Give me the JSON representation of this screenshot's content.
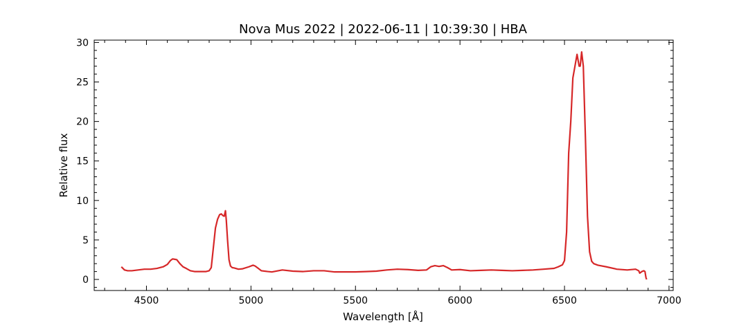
{
  "chart_data": {
    "type": "line",
    "title": "Nova Mus 2022 | 2022-06-11 | 10:39:30 | HBA",
    "xlabel": "Wavelength [Å]",
    "ylabel": "Relative flux",
    "xlim": [
      4250,
      7020
    ],
    "ylim": [
      -1.4,
      30.3
    ],
    "xticks": [
      4500,
      5000,
      5500,
      6000,
      6500,
      7000
    ],
    "yticks": [
      0,
      5,
      10,
      15,
      20,
      25,
      30
    ],
    "grid": false,
    "legend": "none",
    "color": "#d62728",
    "series": [
      {
        "x": [
          4380,
          4395,
          4410,
          4430,
          4460,
          4490,
          4520,
          4550,
          4580,
          4600,
          4615,
          4625,
          4635,
          4645,
          4660,
          4675,
          4690,
          4710,
          4730,
          4750,
          4770,
          4785,
          4800,
          4810,
          4820,
          4830,
          4840,
          4850,
          4858,
          4865,
          4872,
          4878,
          4882,
          4888,
          4895,
          4902,
          4910,
          4920,
          4940,
          4960,
          4990,
          5010,
          5020,
          5035,
          5050,
          5080,
          5100,
          5150,
          5200,
          5250,
          5300,
          5350,
          5400,
          5450,
          5500,
          5550,
          5600,
          5650,
          5700,
          5750,
          5800,
          5840,
          5860,
          5880,
          5900,
          5920,
          5940,
          5960,
          6000,
          6050,
          6100,
          6150,
          6200,
          6250,
          6300,
          6350,
          6400,
          6450,
          6470,
          6490,
          6500,
          6510,
          6520,
          6530,
          6540,
          6550,
          6560,
          6570,
          6575,
          6582,
          6590,
          6600,
          6610,
          6620,
          6630,
          6640,
          6660,
          6700,
          6750,
          6800,
          6840,
          6855,
          6860,
          6870,
          6880,
          6885,
          6888,
          6890,
          6893
        ],
        "y": [
          1.6,
          1.2,
          1.1,
          1.1,
          1.2,
          1.3,
          1.3,
          1.4,
          1.6,
          1.9,
          2.4,
          2.6,
          2.55,
          2.5,
          2.0,
          1.6,
          1.4,
          1.1,
          1.0,
          1.0,
          1.0,
          1.0,
          1.1,
          1.5,
          4.0,
          6.5,
          7.6,
          8.2,
          8.3,
          8.1,
          8.0,
          8.7,
          7.5,
          5.0,
          2.5,
          1.7,
          1.5,
          1.45,
          1.3,
          1.35,
          1.6,
          1.8,
          1.7,
          1.4,
          1.1,
          1.0,
          0.95,
          1.2,
          1.05,
          1.0,
          1.1,
          1.1,
          0.95,
          0.95,
          0.95,
          1.0,
          1.05,
          1.2,
          1.3,
          1.25,
          1.15,
          1.2,
          1.6,
          1.75,
          1.65,
          1.75,
          1.5,
          1.2,
          1.25,
          1.1,
          1.15,
          1.2,
          1.15,
          1.1,
          1.15,
          1.2,
          1.3,
          1.4,
          1.6,
          1.85,
          2.4,
          6.0,
          16.0,
          20.0,
          25.5,
          27.0,
          28.5,
          27.0,
          27.0,
          28.8,
          27.0,
          18.0,
          8.0,
          3.5,
          2.3,
          2.0,
          1.8,
          1.6,
          1.3,
          1.2,
          1.3,
          1.1,
          0.8,
          1.0,
          1.1,
          1.0,
          0.5,
          0.2,
          0.0
        ]
      }
    ]
  }
}
